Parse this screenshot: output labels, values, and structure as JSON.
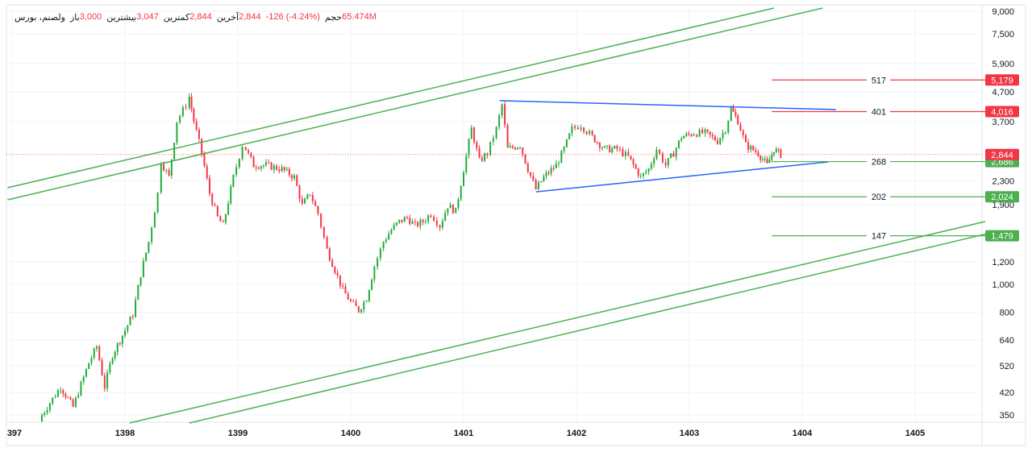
{
  "header": {
    "symbol": "ولصنم، بورس",
    "open_label": "باز",
    "open": "3,000",
    "high_label": "بیشترین",
    "high": "3,047",
    "low_label": "کمترین",
    "low": "2,844",
    "close_label": "آخرین",
    "close": "2,844",
    "change": "-126 (-4.24%)",
    "volume_label": "حجم",
    "volume": "65.474M"
  },
  "colors": {
    "up": "#22ab3a",
    "down": "#f23645",
    "channel": "#4caf50",
    "triangle": "#2962ff",
    "resistance": "#f23645",
    "support": "#4caf50"
  },
  "chart_data": {
    "type": "candlestick",
    "y_scale": "log",
    "ylim": [
      330,
      9200
    ],
    "xlim": [
      1396.96,
      1405.65
    ],
    "grid": true,
    "x_ticks": [
      "397",
      "1398",
      "1399",
      "1400",
      "1401",
      "1402",
      "1403",
      "1404",
      "1405"
    ],
    "x_tick_values": [
      1397,
      1398,
      1399,
      1400,
      1401,
      1402,
      1403,
      1404,
      1405
    ],
    "y_ticks": [
      9000,
      7500,
      5900,
      4700,
      3700,
      2300,
      1900,
      1200,
      1000,
      800,
      640,
      520,
      420,
      350
    ],
    "y_tick_labels": [
      "9,000",
      "7,500",
      "5,900",
      "4,700",
      "3,700",
      "2,300",
      "1,900",
      "1,200",
      "1,000",
      "800",
      "640",
      "520",
      "420",
      "350"
    ],
    "price_path": [
      [
        1397.24,
        339
      ],
      [
        1397.43,
        439
      ],
      [
        1397.54,
        373
      ],
      [
        1397.68,
        533
      ],
      [
        1397.75,
        607
      ],
      [
        1397.82,
        439
      ],
      [
        1397.89,
        569
      ],
      [
        1398.0,
        691
      ],
      [
        1398.07,
        786
      ],
      [
        1398.14,
        1088
      ],
      [
        1398.21,
        1410
      ],
      [
        1398.29,
        2080
      ],
      [
        1398.32,
        2697
      ],
      [
        1398.39,
        2369
      ],
      [
        1398.46,
        3729
      ],
      [
        1398.54,
        4244
      ],
      [
        1398.57,
        4528
      ],
      [
        1398.61,
        3729
      ],
      [
        1398.68,
        2876
      ],
      [
        1398.75,
        2080
      ],
      [
        1398.82,
        1713
      ],
      [
        1398.87,
        1605
      ],
      [
        1398.96,
        2369
      ],
      [
        1399.04,
        3069
      ],
      [
        1399.07,
        2972
      ],
      [
        1399.14,
        2610
      ],
      [
        1399.25,
        2610
      ],
      [
        1399.39,
        2527
      ],
      [
        1399.5,
        2369
      ],
      [
        1399.57,
        1887
      ],
      [
        1399.64,
        2080
      ],
      [
        1399.71,
        1768
      ],
      [
        1399.79,
        1322
      ],
      [
        1399.86,
        1124
      ],
      [
        1399.93,
        956
      ],
      [
        1400.0,
        867
      ],
      [
        1400.07,
        813
      ],
      [
        1400.14,
        896
      ],
      [
        1400.21,
        1161
      ],
      [
        1400.29,
        1410
      ],
      [
        1400.36,
        1554
      ],
      [
        1400.43,
        1658
      ],
      [
        1400.5,
        1713
      ],
      [
        1400.57,
        1605
      ],
      [
        1400.64,
        1658
      ],
      [
        1400.71,
        1768
      ],
      [
        1400.79,
        1605
      ],
      [
        1400.86,
        1887
      ],
      [
        1400.93,
        1800
      ],
      [
        1401.0,
        2527
      ],
      [
        1401.07,
        3495
      ],
      [
        1401.14,
        2697
      ],
      [
        1401.21,
        2876
      ],
      [
        1401.29,
        3495
      ],
      [
        1401.34,
        4244
      ],
      [
        1401.39,
        2972
      ],
      [
        1401.5,
        3069
      ],
      [
        1401.57,
        2527
      ],
      [
        1401.64,
        2149
      ],
      [
        1401.71,
        2369
      ],
      [
        1401.82,
        2610
      ],
      [
        1401.89,
        2972
      ],
      [
        1401.96,
        3495
      ],
      [
        1402.04,
        3609
      ],
      [
        1402.14,
        3275
      ],
      [
        1402.25,
        2972
      ],
      [
        1402.36,
        2972
      ],
      [
        1402.46,
        2785
      ],
      [
        1402.57,
        2369
      ],
      [
        1402.64,
        2527
      ],
      [
        1402.71,
        2972
      ],
      [
        1402.79,
        2610
      ],
      [
        1402.86,
        2876
      ],
      [
        1402.93,
        3275
      ],
      [
        1403.04,
        3381
      ],
      [
        1403.14,
        3381
      ],
      [
        1403.25,
        3171
      ],
      [
        1403.32,
        3495
      ],
      [
        1403.37,
        4109
      ],
      [
        1403.43,
        3729
      ],
      [
        1403.5,
        3069
      ],
      [
        1403.61,
        2876
      ],
      [
        1403.69,
        2610
      ],
      [
        1403.75,
        2972
      ],
      [
        1403.81,
        2844
      ]
    ],
    "trendlines": [
      {
        "kind": "channel",
        "points": [
          [
            1396.96,
            2177
          ],
          [
            1403.75,
            9236
          ]
        ]
      },
      {
        "kind": "channel",
        "points": [
          [
            1396.96,
            1975
          ],
          [
            1404.18,
            9236
          ]
        ]
      },
      {
        "kind": "channel",
        "points": [
          [
            1398.04,
            328
          ],
          [
            1405.62,
            1658
          ]
        ]
      },
      {
        "kind": "channel",
        "points": [
          [
            1398.57,
            328
          ],
          [
            1405.64,
            1505
          ]
        ]
      },
      {
        "kind": "triangle",
        "points": [
          [
            1401.32,
            4386
          ],
          [
            1404.3,
            4082
          ]
        ]
      },
      {
        "kind": "triangle",
        "points": [
          [
            1401.64,
            2106
          ],
          [
            1404.23,
            2679
          ]
        ]
      }
    ],
    "levels": [
      {
        "label": "517",
        "price": 5179,
        "price_label": "5,179",
        "kind": "resistance"
      },
      {
        "label": "401",
        "price": 4016,
        "price_label": "4,016",
        "kind": "resistance"
      },
      {
        "label": "268",
        "price": 2686,
        "price_label": "2,686",
        "kind": "support"
      },
      {
        "label": "202",
        "price": 2024,
        "price_label": "2,024",
        "kind": "support"
      },
      {
        "label": "147",
        "price": 1479,
        "price_label": "1,479",
        "kind": "support"
      }
    ],
    "levels_start": 1403.73,
    "last_price": 2844,
    "last_price_label": "2,844"
  }
}
